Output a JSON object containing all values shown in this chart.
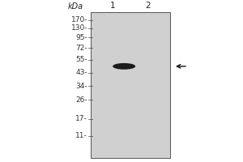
{
  "kda_label": "kDa",
  "lane_labels": [
    "1",
    "2"
  ],
  "mw_markers": [
    170,
    130,
    95,
    72,
    55,
    43,
    34,
    26,
    17,
    11
  ],
  "gel_bg_color": "#d0d0d0",
  "gel_border_color": "#555555",
  "band_color": "#111111",
  "arrow_color": "#111111",
  "fig_bg_color": "#ffffff",
  "font_size_mw": 6.5,
  "font_size_lane": 7.5,
  "font_size_kda": 7
}
